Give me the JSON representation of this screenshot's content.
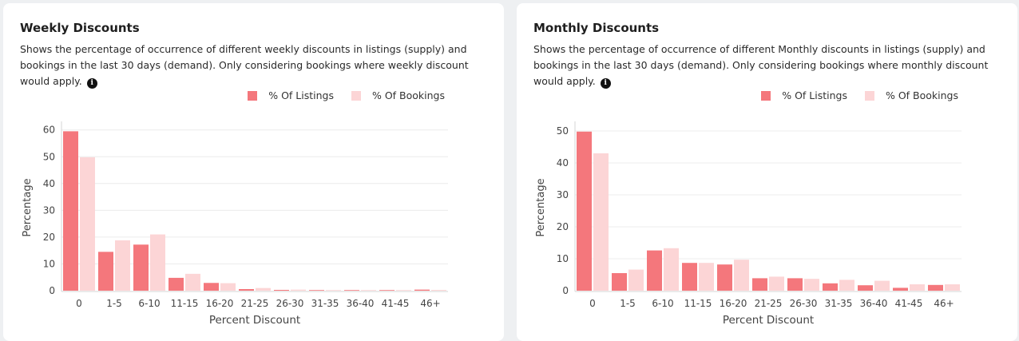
{
  "panels": [
    {
      "title": "Weekly Discounts",
      "description": "Shows the percentage of occurrence of different weekly discounts in listings (supply) and bookings in the last 30 days (demand). Only considering bookings where weekly discount would apply.",
      "info_icon": "info-icon",
      "legend": {
        "listings": "% Of Listings",
        "bookings": "% Of Bookings"
      },
      "chart_data": {
        "type": "bar",
        "categories": [
          "0",
          "1-5",
          "6-10",
          "11-15",
          "16-20",
          "21-25",
          "26-30",
          "31-35",
          "36-40",
          "41-45",
          "46+"
        ],
        "series": [
          {
            "name": "% Of Listings",
            "color": "#f4777c",
            "values": [
              59.5,
              14.5,
              17.2,
              4.8,
              2.9,
              0.6,
              0.3,
              0.1,
              0.1,
              0.1,
              0.4
            ]
          },
          {
            "name": "% Of Bookings",
            "color": "#fcd5d6",
            "values": [
              49.8,
              18.8,
              21.0,
              6.3,
              2.8,
              1.0,
              0.4,
              0.1,
              0.1,
              0.1,
              0.3
            ]
          }
        ],
        "xlabel": "Percent Discount",
        "ylabel": "Percentage",
        "ylim": [
          0,
          62
        ],
        "yticks": [
          0,
          10,
          20,
          30,
          40,
          50,
          60
        ],
        "grid": true,
        "legend_position": "top-right"
      }
    },
    {
      "title": "Monthly Discounts",
      "description": "Shows the percentage of occurrence of different Monthly discounts in listings (supply) and bookings in the last 30 days (demand). Only considering bookings where monthly discount would apply.",
      "info_icon": "info-icon",
      "legend": {
        "listings": "% Of Listings",
        "bookings": "% Of Bookings"
      },
      "chart_data": {
        "type": "bar",
        "categories": [
          "0",
          "1-5",
          "6-10",
          "11-15",
          "16-20",
          "21-25",
          "26-30",
          "31-35",
          "36-40",
          "41-45",
          "46+"
        ],
        "series": [
          {
            "name": "% Of Listings",
            "color": "#f4777c",
            "values": [
              49.8,
              5.5,
              12.6,
              8.7,
              8.2,
              3.9,
              3.9,
              2.3,
              1.7,
              0.9,
              1.8
            ]
          },
          {
            "name": "% Of Bookings",
            "color": "#fcd5d6",
            "values": [
              43.0,
              6.6,
              13.3,
              8.7,
              9.7,
              4.4,
              3.7,
              3.4,
              3.1,
              2.0,
              2.0
            ]
          }
        ],
        "xlabel": "Percent Discount",
        "ylabel": "Percentage",
        "ylim": [
          0,
          52
        ],
        "yticks": [
          0,
          10,
          20,
          30,
          40,
          50
        ],
        "grid": true,
        "legend_position": "top-right"
      }
    }
  ]
}
